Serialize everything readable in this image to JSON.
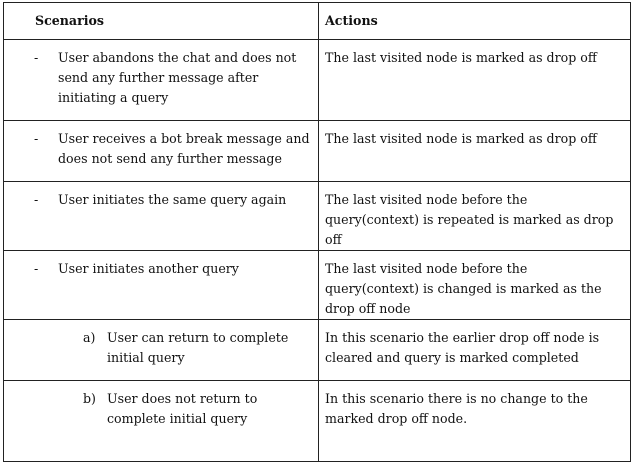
{
  "table": {
    "headers": {
      "scenarios": "Scenarios",
      "actions": "Actions"
    },
    "rows": [
      {
        "marker": "-",
        "scenario": "User abandons the chat and does not send any further message after initiating a query",
        "action": "The last visited node is marked as drop off"
      },
      {
        "marker": "-",
        "scenario": "User receives a bot break message and does not send any further message",
        "action": "The last visited node is marked as drop off"
      },
      {
        "marker": "-",
        "scenario": "User initiates the same query again",
        "action": "The last visited node before the query(context) is repeated is marked as drop off"
      },
      {
        "marker": "-",
        "scenario": "User initiates another query",
        "action": "The last visited node before the query(context) is changed is marked as the drop off node"
      },
      {
        "marker": "a)",
        "scenario": "User can return to complete initial query",
        "action": "In this scenario the earlier drop off node is cleared and query is marked completed"
      },
      {
        "marker": "b)",
        "scenario": "User does not return to complete initial query",
        "action": "In this scenario there is no change to the marked drop off node."
      }
    ]
  }
}
